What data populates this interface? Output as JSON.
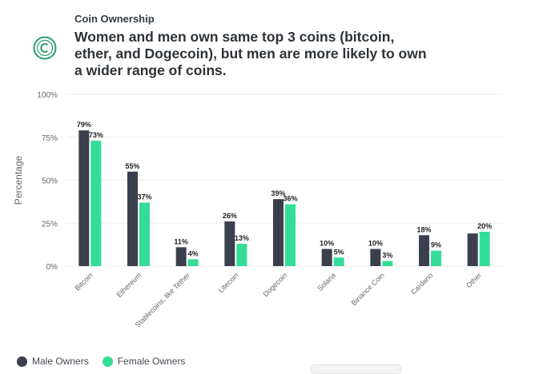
{
  "header": {
    "subtitle": "Coin Ownership",
    "title": "Women and men own same top 3 coins (bitcoin, ether, and Dogecoin), but men are more likely to own a wider range of coins."
  },
  "legend": {
    "male_label": "Male Owners",
    "female_label": "Female Owners"
  },
  "colors": {
    "male": "#3b3f4d",
    "female": "#33dd95",
    "grid": "#ececec",
    "axis_text": "#666666",
    "label_text": "#222222",
    "logo": "#2e9e6e"
  },
  "chart_data": {
    "type": "bar",
    "title": "",
    "xlabel": "",
    "ylabel": "Percentage",
    "ylim": [
      0,
      100
    ],
    "yticks": [
      0,
      25,
      50,
      75,
      100
    ],
    "ytick_labels": [
      "0%",
      "25%",
      "50%",
      "75%",
      "100%"
    ],
    "categories": [
      "Bitcoin",
      "Ethereum",
      "Stablecoins, like Tether",
      "Litecoin",
      "Dogecoin",
      "Solana",
      "Binance Coin",
      "Cardano",
      "Other"
    ],
    "series": [
      {
        "name": "Male Owners",
        "values": [
          79,
          55,
          11,
          26,
          39,
          10,
          10,
          18,
          19
        ],
        "labels": [
          "79%",
          "55%",
          "11%",
          "26%",
          "39%",
          "10%",
          "10%",
          "18%",
          ""
        ]
      },
      {
        "name": "Female Owners",
        "values": [
          73,
          37,
          4,
          13,
          36,
          5,
          3,
          9,
          20
        ],
        "labels": [
          "73%",
          "37%",
          "4%",
          "13%",
          "36%",
          "5%",
          "3%",
          "9%",
          "20%"
        ]
      }
    ]
  }
}
